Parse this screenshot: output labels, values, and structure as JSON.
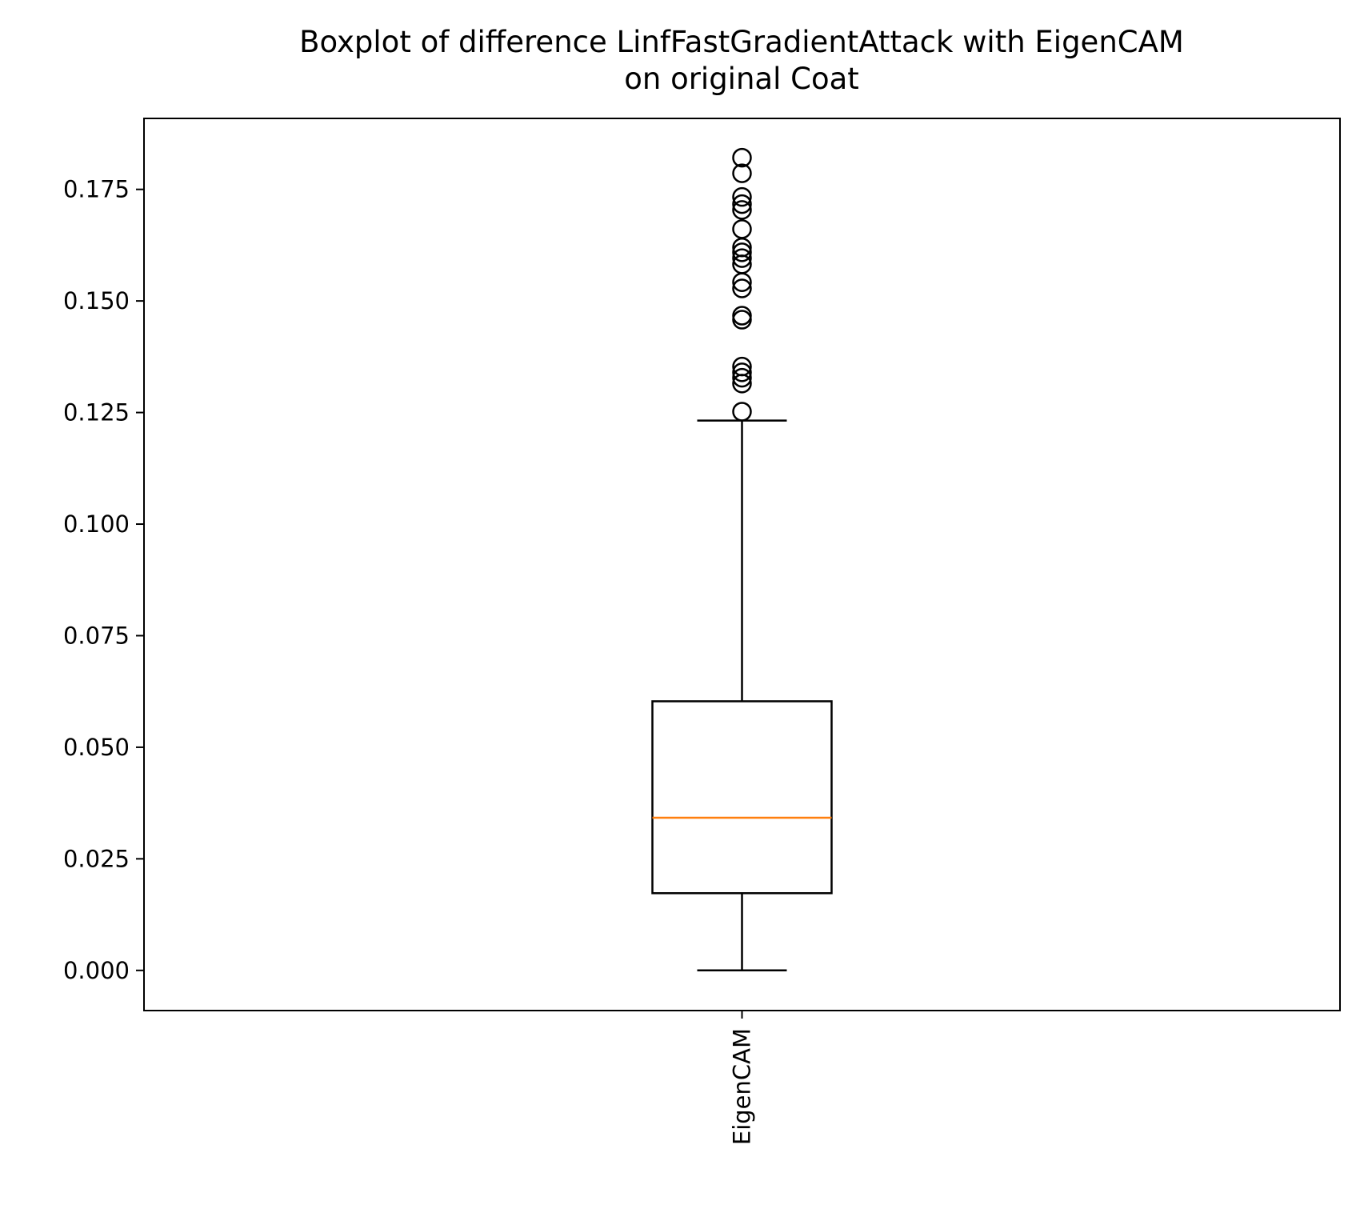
{
  "chart_data": {
    "type": "box",
    "title_lines": [
      "Boxplot of difference LinfFastGradientAttack with EigenCAM",
      "on original Coat"
    ],
    "xlabel": "",
    "ylabel": "",
    "categories": [
      "EigenCAM"
    ],
    "ylim": [
      -0.009,
      0.1909
    ],
    "yticks": [
      0.0,
      0.025,
      0.05,
      0.075,
      0.1,
      0.125,
      0.15,
      0.175
    ],
    "ytick_labels": [
      "0.000",
      "0.025",
      "0.050",
      "0.075",
      "0.100",
      "0.125",
      "0.150",
      "0.175"
    ],
    "grid": false,
    "boxes": [
      {
        "name": "EigenCAM",
        "whisker_low": 0.0,
        "q1": 0.0173,
        "median": 0.0342,
        "q3": 0.0603,
        "whisker_high": 0.1232,
        "outliers": [
          0.1252,
          0.1315,
          0.1328,
          0.134,
          0.1353,
          0.1458,
          0.1467,
          0.1528,
          0.1542,
          0.1582,
          0.1596,
          0.1609,
          0.162,
          0.1661,
          0.1704,
          0.1717,
          0.1733,
          0.1786,
          0.1821
        ]
      }
    ],
    "colors": {
      "box": "#000000",
      "median": "#ff7f0e",
      "outlier_edge": "#000000"
    }
  }
}
